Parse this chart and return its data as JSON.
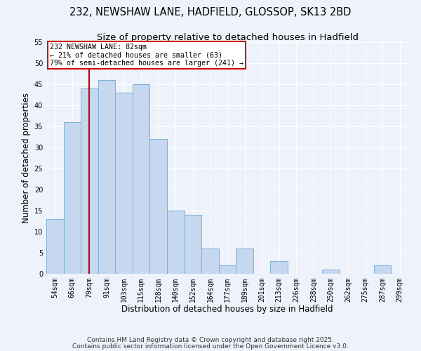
{
  "title": "232, NEWSHAW LANE, HADFIELD, GLOSSOP, SK13 2BD",
  "subtitle": "Size of property relative to detached houses in Hadfield",
  "xlabel": "Distribution of detached houses by size in Hadfield",
  "ylabel": "Number of detached properties",
  "categories": [
    "54sqm",
    "66sqm",
    "79sqm",
    "91sqm",
    "103sqm",
    "115sqm",
    "128sqm",
    "140sqm",
    "152sqm",
    "164sqm",
    "177sqm",
    "189sqm",
    "201sqm",
    "213sqm",
    "226sqm",
    "238sqm",
    "250sqm",
    "262sqm",
    "275sqm",
    "287sqm",
    "299sqm"
  ],
  "values": [
    13,
    36,
    44,
    46,
    43,
    45,
    32,
    15,
    14,
    6,
    2,
    6,
    0,
    3,
    0,
    0,
    1,
    0,
    0,
    2,
    0
  ],
  "bar_color": "#c5d8f0",
  "bar_edge_color": "#7bafd4",
  "annotation_line_color": "#cc0000",
  "annotation_box_text": "232 NEWSHAW LANE: 82sqm\n← 21% of detached houses are smaller (63)\n79% of semi-detached houses are larger (241) →",
  "ylim": [
    0,
    55
  ],
  "yticks": [
    0,
    5,
    10,
    15,
    20,
    25,
    30,
    35,
    40,
    45,
    50,
    55
  ],
  "footer1": "Contains HM Land Registry data © Crown copyright and database right 2025.",
  "footer2": "Contains public sector information licensed under the Open Government Licence v3.0.",
  "bg_color": "#eef2fb",
  "grid_color": "#ffffff",
  "title_fontsize": 10.5,
  "subtitle_fontsize": 9.5,
  "tick_fontsize": 7,
  "label_fontsize": 8.5,
  "footer_fontsize": 6.5
}
